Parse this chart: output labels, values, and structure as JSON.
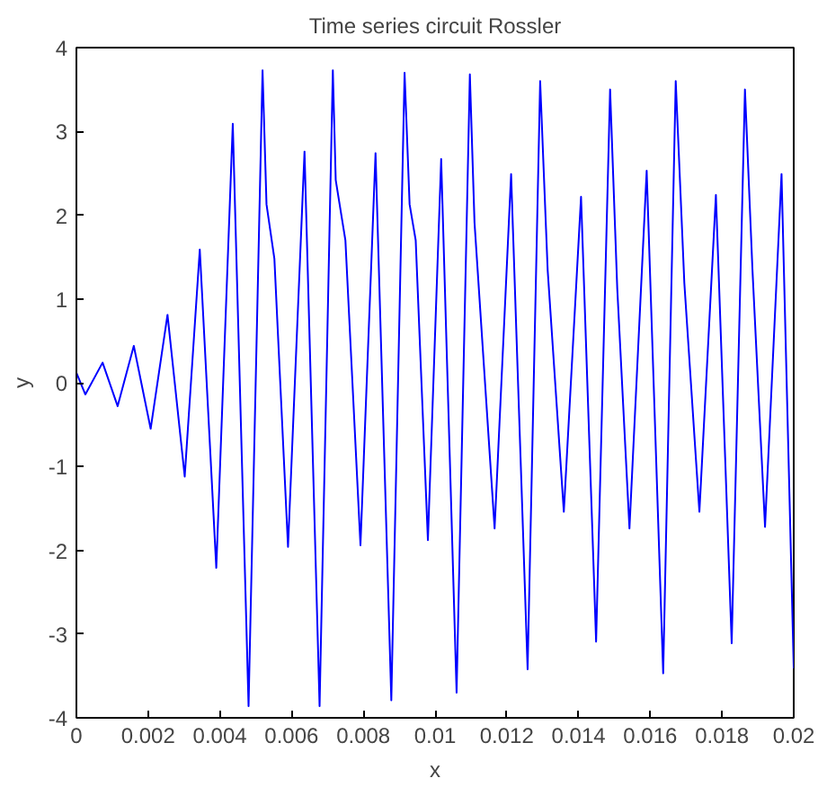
{
  "chart_data": {
    "type": "line",
    "title": "Time series circuit Rossler",
    "xlabel": "x",
    "ylabel": "y",
    "xlim": [
      0,
      0.02
    ],
    "ylim": [
      -4,
      4
    ],
    "xticks": [
      0,
      0.002,
      0.004,
      0.006,
      0.008,
      0.01,
      0.012,
      0.014,
      0.016,
      0.018,
      0.02
    ],
    "yticks": [
      -4,
      -3,
      -2,
      -1,
      0,
      1,
      2,
      3,
      4
    ],
    "marker": "none",
    "line_style": "solid",
    "series": [
      {
        "color": "#0000ff",
        "x": [
          0,
          0.00025,
          0.00073,
          0.00115,
          0.0016,
          0.00207,
          0.00254,
          0.00302,
          0.00344,
          0.0039,
          0.00436,
          0.0048,
          0.00519,
          0.0053,
          0.00552,
          0.0059,
          0.00636,
          0.00678,
          0.00715,
          0.00723,
          0.0075,
          0.00792,
          0.00834,
          0.00878,
          0.00915,
          0.00929,
          0.00946,
          0.0098,
          0.01017,
          0.0106,
          0.01097,
          0.0111,
          0.01166,
          0.01212,
          0.01258,
          0.01293,
          0.01314,
          0.01359,
          0.01407,
          0.01449,
          0.01488,
          0.01508,
          0.01542,
          0.0159,
          0.01636,
          0.01671,
          0.01695,
          0.01737,
          0.01783,
          0.01827,
          0.01864,
          0.01885,
          0.0192,
          0.01966,
          0.02
        ],
        "values": [
          0.12,
          -0.14,
          0.24,
          -0.28,
          0.44,
          -0.55,
          0.81,
          -1.12,
          1.59,
          -2.21,
          3.09,
          -3.86,
          3.73,
          2.13,
          1.48,
          -1.96,
          2.76,
          -3.86,
          3.73,
          2.42,
          1.7,
          -1.94,
          2.74,
          -3.79,
          3.7,
          2.13,
          1.7,
          -1.88,
          2.67,
          -3.7,
          3.68,
          1.91,
          -1.74,
          2.49,
          -3.42,
          3.6,
          1.34,
          -1.54,
          2.22,
          -3.09,
          3.5,
          1.12,
          -1.74,
          2.53,
          -3.47,
          3.6,
          1.19,
          -1.54,
          2.24,
          -3.11,
          3.5,
          1.34,
          -1.72,
          2.49,
          -3.41
        ]
      }
    ]
  }
}
